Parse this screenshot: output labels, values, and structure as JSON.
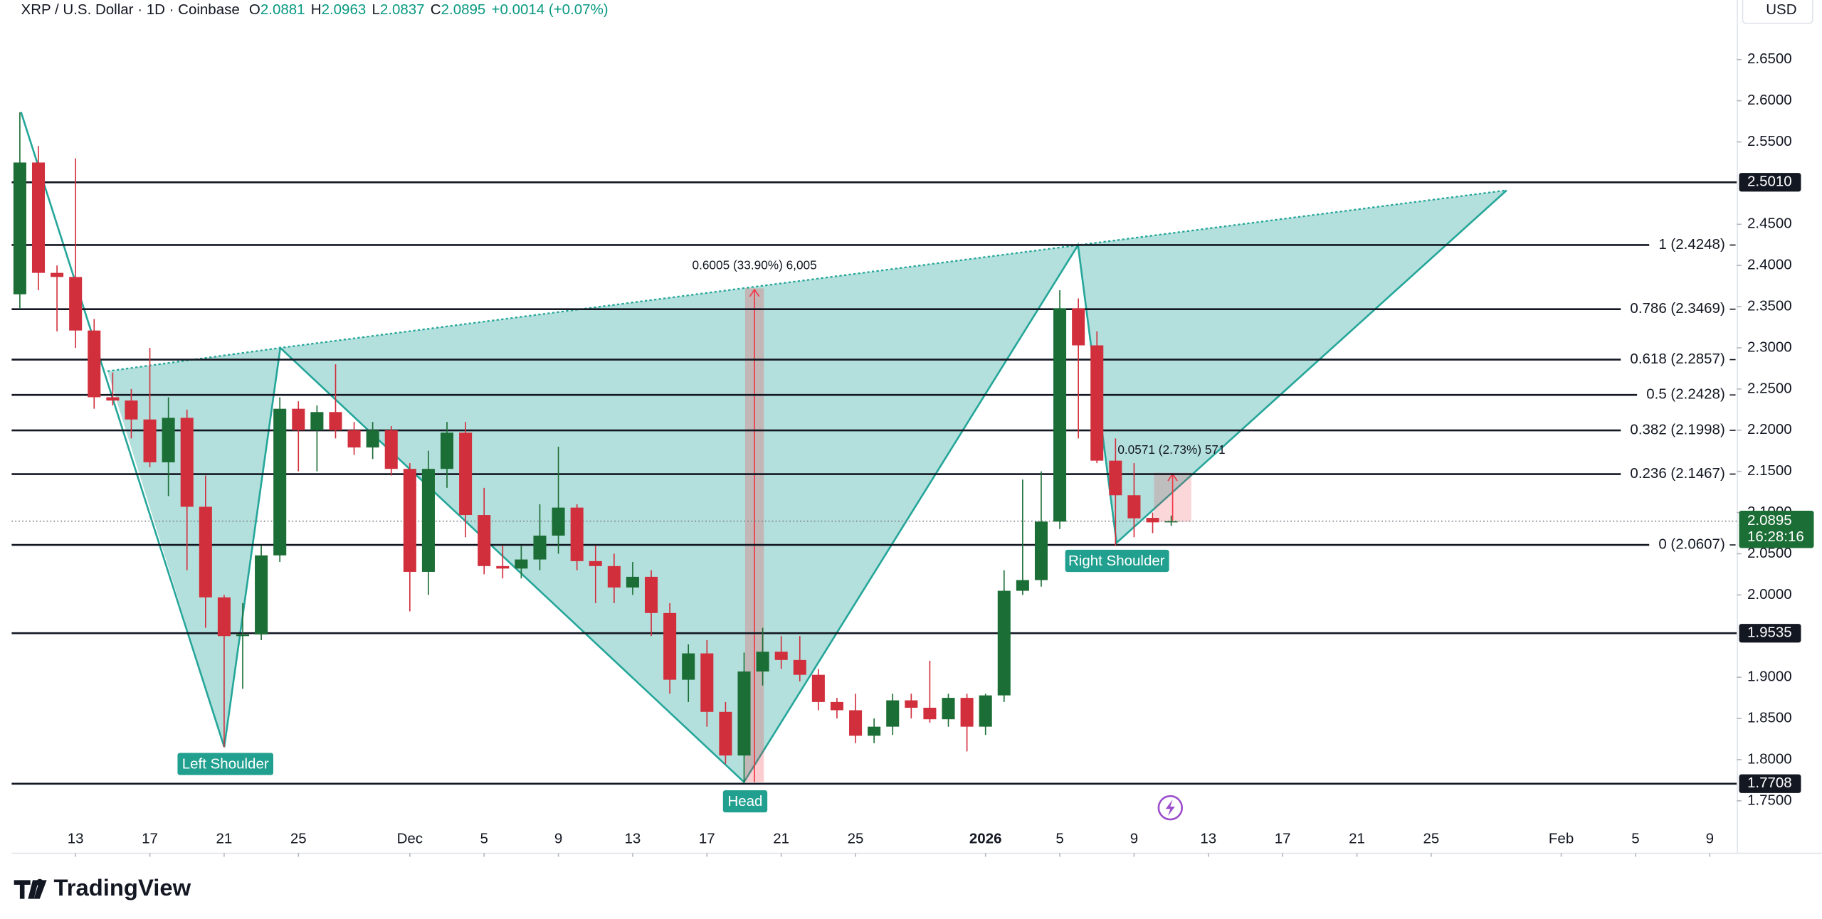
{
  "chart_data": {
    "type": "candlestick",
    "title": "XRP / U.S. Dollar · 1D · Coinbase",
    "ohlc_labels": [
      "O",
      "H",
      "L",
      "C"
    ],
    "change": "+0.0014 (+0.07%)",
    "currency": "USD",
    "countdown": "16:28:16",
    "up_color": "#1b6e35",
    "down_color": "#d22f3d",
    "x": [
      "2025-11-10",
      "2025-11-11",
      "2025-11-12",
      "2025-11-13",
      "2025-11-14",
      "2025-11-15",
      "2025-11-16",
      "2025-11-17",
      "2025-11-18",
      "2025-11-19",
      "2025-11-20",
      "2025-11-21",
      "2025-11-22",
      "2025-11-23",
      "2025-11-24",
      "2025-11-25",
      "2025-11-26",
      "2025-11-27",
      "2025-11-28",
      "2025-11-29",
      "2025-11-30",
      "2025-12-01",
      "2025-12-02",
      "2025-12-03",
      "2025-12-04",
      "2025-12-05",
      "2025-12-06",
      "2025-12-07",
      "2025-12-08",
      "2025-12-09",
      "2025-12-10",
      "2025-12-11",
      "2025-12-12",
      "2025-12-13",
      "2025-12-14",
      "2025-12-15",
      "2025-12-16",
      "2025-12-17",
      "2025-12-18",
      "2025-12-19",
      "2025-12-20",
      "2025-12-21",
      "2025-12-22",
      "2025-12-23",
      "2025-12-24",
      "2025-12-25",
      "2025-12-26",
      "2025-12-27",
      "2025-12-28",
      "2025-12-29",
      "2025-12-30",
      "2025-12-31",
      "2026-01-01",
      "2026-01-02",
      "2026-01-03",
      "2026-01-04",
      "2026-01-05",
      "2026-01-06",
      "2026-01-07",
      "2026-01-08",
      "2026-01-09",
      "2026-01-10",
      "2026-01-11"
    ],
    "open": [
      2.365,
      2.525,
      2.391,
      2.386,
      2.321,
      2.24,
      2.236,
      2.213,
      2.161,
      2.215,
      2.107,
      1.997,
      1.95,
      1.952,
      2.048,
      2.226,
      2.2,
      2.222,
      2.2,
      2.179,
      2.2,
      2.153,
      2.028,
      2.153,
      2.197,
      2.097,
      2.035,
      2.032,
      2.043,
      2.072,
      2.106,
      2.041,
      2.035,
      2.009,
      2.022,
      1.978,
      1.897,
      1.929,
      1.858,
      1.805,
      1.907,
      1.931,
      1.921,
      1.903,
      1.87,
      1.86,
      1.829,
      1.84,
      1.872,
      1.863,
      1.849,
      1.875,
      1.84,
      1.878,
      2.005,
      2.018,
      2.089,
      2.348,
      2.303,
      2.163,
      2.121,
      2.0935,
      2.0881
    ],
    "high": [
      2.586,
      2.545,
      2.4,
      2.53,
      2.335,
      2.27,
      2.25,
      2.3,
      2.24,
      2.225,
      2.145,
      2.0,
      1.99,
      2.06,
      2.24,
      2.235,
      2.23,
      2.28,
      2.21,
      2.21,
      2.205,
      2.16,
      2.175,
      2.21,
      2.21,
      2.13,
      2.06,
      2.06,
      2.11,
      2.18,
      2.11,
      2.06,
      2.05,
      2.04,
      2.03,
      1.99,
      1.94,
      1.945,
      1.87,
      1.93,
      1.96,
      1.95,
      1.95,
      1.91,
      1.875,
      1.88,
      1.85,
      1.88,
      1.88,
      1.92,
      1.88,
      1.88,
      1.88,
      2.03,
      2.14,
      2.15,
      2.37,
      2.36,
      2.32,
      2.19,
      2.16,
      2.1,
      2.0963
    ],
    "low": [
      2.347,
      2.37,
      2.32,
      2.3,
      2.226,
      2.23,
      2.19,
      2.155,
      2.12,
      2.03,
      1.96,
      1.815,
      1.886,
      1.945,
      2.04,
      2.15,
      2.15,
      2.19,
      2.17,
      2.165,
      2.145,
      1.98,
      2.0,
      2.13,
      2.07,
      2.025,
      2.02,
      2.02,
      2.03,
      2.05,
      2.03,
      1.99,
      1.99,
      2.0,
      1.95,
      1.88,
      1.87,
      1.84,
      1.795,
      1.773,
      1.89,
      1.91,
      1.895,
      1.86,
      1.85,
      1.82,
      1.82,
      1.83,
      1.85,
      1.845,
      1.84,
      1.81,
      1.83,
      1.87,
      2.0,
      2.01,
      2.08,
      2.19,
      2.16,
      2.06,
      2.07,
      2.075,
      2.0837
    ],
    "close": [
      2.525,
      2.391,
      2.386,
      2.321,
      2.24,
      2.236,
      2.213,
      2.161,
      2.215,
      2.107,
      1.997,
      1.95,
      1.952,
      2.048,
      2.226,
      2.2,
      2.222,
      2.2,
      2.179,
      2.2,
      2.153,
      2.028,
      2.153,
      2.197,
      2.097,
      2.035,
      2.032,
      2.043,
      2.072,
      2.106,
      2.041,
      2.035,
      2.009,
      2.022,
      1.978,
      1.897,
      1.929,
      1.858,
      1.805,
      1.907,
      1.931,
      1.921,
      1.903,
      1.87,
      1.86,
      1.829,
      1.84,
      1.872,
      1.863,
      1.849,
      1.875,
      1.84,
      1.878,
      2.005,
      2.018,
      2.089,
      2.348,
      2.303,
      2.163,
      2.121,
      2.093,
      2.0881,
      2.0895
    ],
    "ylim": [
      1.6863,
      2.7223
    ],
    "yticks": [
      {
        "value": 2.65,
        "label": "2.6500"
      },
      {
        "value": 2.6,
        "label": "2.6000"
      },
      {
        "value": 2.55,
        "label": "2.5500"
      },
      {
        "value": 2.45,
        "label": "2.4500"
      },
      {
        "value": 2.4,
        "label": "2.4000"
      },
      {
        "value": 2.35,
        "label": "2.3500"
      },
      {
        "value": 2.3,
        "label": "2.3000"
      },
      {
        "value": 2.25,
        "label": "2.2500"
      },
      {
        "value": 2.2,
        "label": "2.2000"
      },
      {
        "value": 2.15,
        "label": "2.1500"
      },
      {
        "value": 2.1,
        "label": "2.1000"
      },
      {
        "value": 2.05,
        "label": "2.0500"
      },
      {
        "value": 2.0,
        "label": "2.0000"
      },
      {
        "value": 1.9,
        "label": "1.9000"
      },
      {
        "value": 1.85,
        "label": "1.8500"
      },
      {
        "value": 1.8,
        "label": "1.8000"
      },
      {
        "value": 1.75,
        "label": "1.7500"
      }
    ],
    "xticks": [
      {
        "value": "2025-11-13",
        "label": "13"
      },
      {
        "value": "2025-11-17",
        "label": "17"
      },
      {
        "value": "2025-11-21",
        "label": "21"
      },
      {
        "value": "2025-11-25",
        "label": "25"
      },
      {
        "value": "2025-12-01",
        "label": "Dec"
      },
      {
        "value": "2025-12-05",
        "label": "5"
      },
      {
        "value": "2025-12-09",
        "label": "9"
      },
      {
        "value": "2025-12-13",
        "label": "13"
      },
      {
        "value": "2025-12-17",
        "label": "17"
      },
      {
        "value": "2025-12-21",
        "label": "21"
      },
      {
        "value": "2025-12-25",
        "label": "25"
      },
      {
        "value": "2026-01-01",
        "label": "2026"
      },
      {
        "value": "2026-01-05",
        "label": "5"
      },
      {
        "value": "2026-01-09",
        "label": "9"
      },
      {
        "value": "2026-01-13",
        "label": "13"
      },
      {
        "value": "2026-01-17",
        "label": "17"
      },
      {
        "value": "2026-01-21",
        "label": "21"
      },
      {
        "value": "2026-01-25",
        "label": "25"
      },
      {
        "value": "2026-02-01",
        "label": "Feb"
      },
      {
        "value": "2026-02-05",
        "label": "5"
      },
      {
        "value": "2026-02-09",
        "label": "9"
      }
    ],
    "hlines": [
      {
        "value": 2.501,
        "label": "2.5010"
      },
      {
        "value": 1.9535,
        "label": "1.9535"
      },
      {
        "value": 1.7708,
        "label": "1.7708"
      }
    ],
    "fib_levels": [
      {
        "value": 2.4248,
        "label": "1 (2.4248)"
      },
      {
        "value": 2.3469,
        "label": "0.786 (2.3469)"
      },
      {
        "value": 2.2857,
        "label": "0.618 (2.2857)"
      },
      {
        "value": 2.2428,
        "label": "0.5 (2.2428)"
      },
      {
        "value": 2.1998,
        "label": "0.382 (2.1998)"
      },
      {
        "value": 2.1467,
        "label": "0.236 (2.1467)"
      },
      {
        "value": 2.0607,
        "label": "0 (2.0607)"
      }
    ],
    "measurements": [
      "0.6005 (33.90%) 6,005",
      "0.0571 (2.73%) 571"
    ],
    "pattern_labels": [
      "Left Shoulder",
      "Head",
      "Right Shoulder"
    ],
    "brand": "TradingView"
  }
}
